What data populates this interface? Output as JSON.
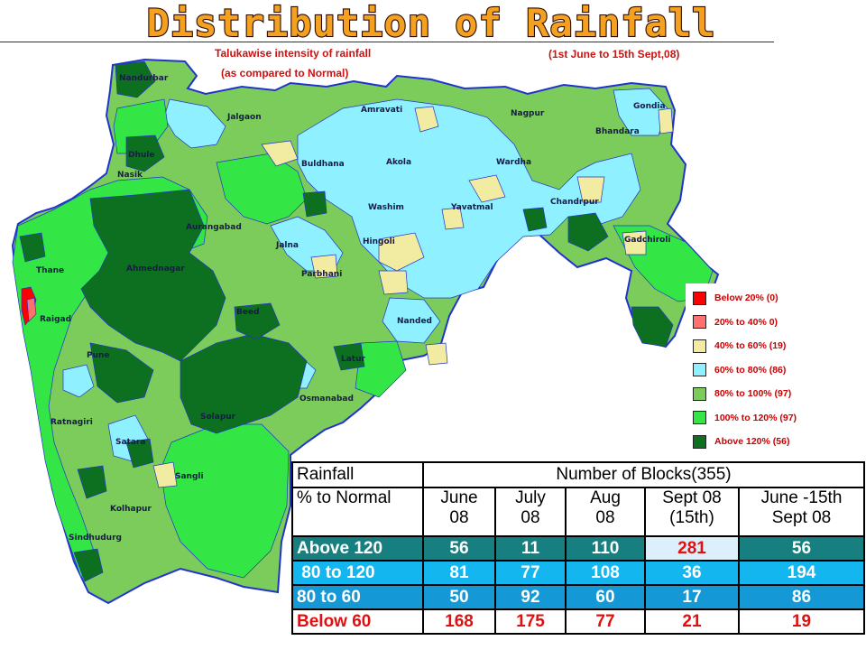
{
  "title": "Distribution of Rainfall",
  "subtitle": {
    "line1": "Talukawise intensity of rainfall",
    "line2": "(as compared to  Normal)",
    "period": "(1st June to 15th Sept,08)"
  },
  "map": {
    "colors": {
      "above120": "#0d7020",
      "r100_120": "#33e645",
      "r80_100": "#7ccc5c",
      "r60_80": "#8ff0ff",
      "r40_60": "#f2eca2",
      "r20_40": "#ff7070",
      "below20": "#ff0000",
      "border": "#2233cc"
    },
    "districts": [
      "Nandurbar",
      "Jalgaon",
      "Dhule",
      "Nasik",
      "Aurangabad",
      "Buldhana",
      "Amravati",
      "Nagpur",
      "Gondia",
      "Bhandara",
      "Akola",
      "Wardha",
      "Washim",
      "Yavatmal",
      "Chandrpur",
      "Gadchiroli",
      "Hingoli",
      "Jalna",
      "Thane",
      "Ahmednagar",
      "Parbhani",
      "Raigad",
      "Beed",
      "Nanded",
      "Pune",
      "Latur",
      "Osmanabad",
      "Ratnagiri",
      "Solapur",
      "Satara",
      "Sangli",
      "Kolhapur",
      "Sindhudurg"
    ]
  },
  "legend": [
    {
      "label": "Below 20%  (0)",
      "color": "#ff0000"
    },
    {
      "label": "20% to 40% 0)",
      "color": "#ff7070"
    },
    {
      "label": "40% to 60% (19)",
      "color": "#f2eca2"
    },
    {
      "label": "60% to 80% (86)",
      "color": "#8ff0ff"
    },
    {
      "label": "80% to 100% (97)",
      "color": "#7ccc5c"
    },
    {
      "label": "100% to 120%  (97)",
      "color": "#33e645"
    },
    {
      "label": "Above 120%  (56)",
      "color": "#0d7020"
    }
  ],
  "table": {
    "corner_top": "Rainfall",
    "corner_bottom": "% to Normal",
    "group_header": "Number of Blocks(355)",
    "columns": [
      {
        "line1": "June",
        "line2": "08"
      },
      {
        "line1": "July",
        "line2": "08"
      },
      {
        "line1": "Aug",
        "line2": "08"
      },
      {
        "line1": "Sept 08",
        "line2": "(15th)"
      },
      {
        "line1": "June -15th",
        "line2": "Sept 08"
      }
    ],
    "rows": [
      {
        "label": "Above 120",
        "values": [
          "56",
          "11",
          "110",
          "281",
          "56"
        ]
      },
      {
        "label": " 80 to 120",
        "values": [
          "81",
          "77",
          "108",
          "36",
          "194"
        ]
      },
      {
        "label": "80 to 60",
        "values": [
          "50",
          "92",
          "60",
          "17",
          "86"
        ]
      },
      {
        "label": "Below 60",
        "values": [
          "168",
          "175",
          "77",
          "21",
          "19"
        ]
      }
    ]
  }
}
